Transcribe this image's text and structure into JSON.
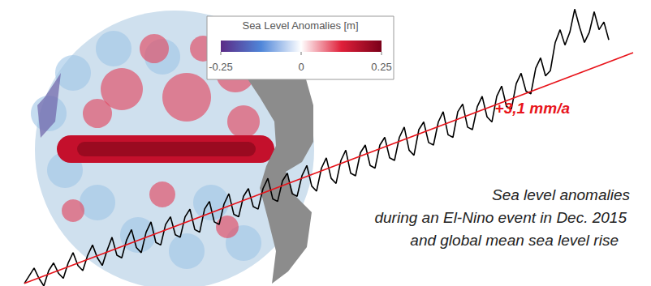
{
  "chart_data": {
    "type": "line",
    "xlim": [
      0,
      125
    ],
    "ylim": [
      0,
      110
    ],
    "grid": false,
    "tick_labels": false,
    "series": [
      {
        "color": "#000000",
        "marker": "none",
        "line_style": "solid",
        "x": [
          0,
          1,
          2,
          3,
          4,
          5,
          6,
          7,
          8,
          9,
          10,
          11,
          12,
          13,
          14,
          15,
          16,
          17,
          18,
          19,
          20,
          21,
          22,
          23,
          24,
          25,
          26,
          27,
          28,
          29,
          30,
          31,
          32,
          33,
          34,
          35,
          36,
          37,
          38,
          39,
          40,
          41,
          42,
          43,
          44,
          45,
          46,
          47,
          48,
          49,
          50,
          51,
          52,
          53,
          54,
          55,
          56,
          57,
          58,
          59,
          60,
          61,
          62,
          63,
          64,
          65,
          66,
          67,
          68,
          69,
          70,
          71,
          72,
          73,
          74,
          75,
          76,
          77,
          78,
          79,
          80,
          81,
          82,
          83,
          84,
          85,
          86,
          87,
          88,
          89,
          90,
          91,
          92,
          93,
          94,
          95,
          96,
          97,
          98,
          99,
          100,
          101,
          102,
          103,
          104,
          105,
          106,
          107,
          108,
          109,
          110,
          111,
          112,
          113,
          114,
          115,
          116,
          117,
          118,
          119,
          120
        ],
        "values": [
          1,
          4,
          7,
          3,
          0,
          6,
          9,
          5,
          3,
          9,
          13,
          8,
          6,
          12,
          16,
          11,
          8,
          14,
          19,
          12,
          11,
          18,
          22,
          15,
          13,
          21,
          25,
          17,
          16,
          24,
          27,
          20,
          19,
          27,
          30,
          22,
          21,
          30,
          33,
          25,
          24,
          32,
          36,
          28,
          27,
          35,
          38,
          31,
          30,
          38,
          42,
          34,
          33,
          41,
          44,
          36,
          35,
          43,
          47,
          39,
          37,
          46,
          50,
          42,
          40,
          49,
          53,
          44,
          43,
          52,
          55,
          47,
          46,
          55,
          58,
          50,
          49,
          58,
          62,
          53,
          51,
          61,
          64,
          56,
          55,
          64,
          68,
          59,
          58,
          68,
          71,
          62,
          61,
          70,
          74,
          66,
          64,
          74,
          78,
          70,
          69,
          79,
          83,
          76,
          75,
          85,
          89,
          82,
          84,
          95,
          100,
          94,
          99,
          108,
          101,
          95,
          99,
          107,
          100,
          103,
          96
        ]
      },
      {
        "color": "#e8141b",
        "marker": "none",
        "line_style": "solid",
        "x": [
          0,
          125
        ],
        "values": [
          1,
          91
        ]
      }
    ],
    "annotations": [
      {
        "text": "+3,1 mm/a",
        "color": "#e8141b"
      }
    ],
    "caption": [
      "Sea level anomalies",
      "during an El-Nino event in Dec. 2015",
      "and global mean sea level rise"
    ],
    "colorbar": {
      "title": "Sea Level Anomalies [m]",
      "range": [
        -0.25,
        0.25
      ],
      "ticks": [
        -0.25,
        0,
        0.25
      ],
      "colors": [
        "#5b2a86",
        "#4f86d9",
        "#ffffff",
        "#e0203a",
        "#7a0019"
      ]
    }
  }
}
